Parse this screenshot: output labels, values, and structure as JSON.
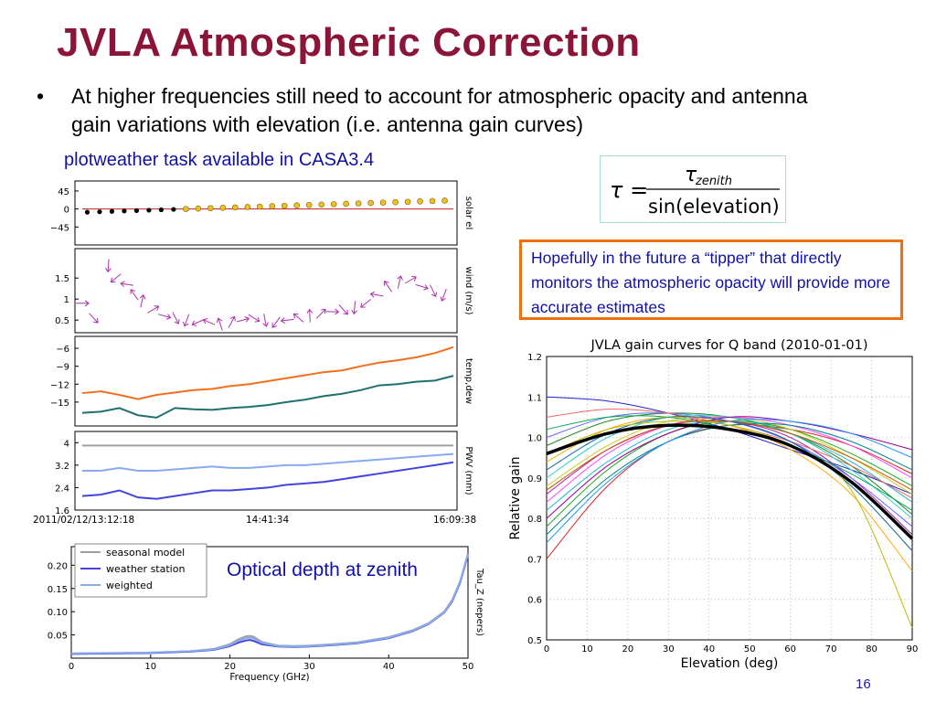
{
  "slide": {
    "title": "JVLA Atmospheric Correction",
    "bullet_symbol": "•",
    "bullet_text": "At higher frequencies still need to account for atmospheric opacity and antenna gain variations with elevation (i.e. antenna gain curves)",
    "note": "plotweather task available in CASA3.4",
    "hope_text": "Hopefully in the future a “tipper” that directly monitors the atmospheric opacity will provide more accurate estimates",
    "optical_label": "Optical depth at zenith",
    "page_number": "16",
    "formula": {
      "lhs": "τ =",
      "numerator": "τ",
      "numerator_sub": "zenith",
      "denominator": "sin(elevation)"
    }
  },
  "chart_data": [
    {
      "type": "scatter",
      "name": "solar-elevation",
      "ylabel": "solar el",
      "yticks": [
        45,
        0,
        -45
      ],
      "ylim": [
        -90,
        70
      ],
      "x": [
        0,
        1,
        2,
        3,
        4,
        5,
        6,
        7,
        8,
        9,
        10,
        11,
        12,
        13,
        14,
        15,
        16,
        17,
        18,
        19,
        20,
        21,
        22,
        23,
        24,
        25,
        26,
        27,
        28,
        29
      ],
      "y": [
        -8,
        -7,
        -6,
        -5,
        -4,
        -3,
        -2,
        -1,
        0,
        1,
        2,
        3,
        4,
        5,
        6,
        7,
        8,
        9,
        10,
        11,
        12,
        13,
        14,
        15,
        16,
        17,
        18,
        19,
        20,
        21
      ],
      "colors": {
        "night": "#000000",
        "day": "#f0c020",
        "line": "#c02020"
      }
    },
    {
      "type": "scatter",
      "name": "wind",
      "ylabel": "wind (m/s)",
      "yticks": [
        1.5,
        1.0,
        0.5
      ],
      "ylim": [
        0.2,
        2.2
      ],
      "x": [
        1,
        4,
        8,
        10,
        13,
        15,
        17,
        20,
        23,
        26,
        29,
        32,
        35,
        38,
        41,
        44,
        47,
        50,
        53,
        56,
        59,
        62,
        65,
        68,
        71,
        74,
        77,
        80,
        83,
        86,
        89,
        92,
        95,
        98
      ],
      "y": [
        0.9,
        0.55,
        1.8,
        1.5,
        1.35,
        1.1,
        0.95,
        0.75,
        0.6,
        0.55,
        0.5,
        0.45,
        0.45,
        0.4,
        0.45,
        0.5,
        0.55,
        0.5,
        0.45,
        0.5,
        0.55,
        0.6,
        0.65,
        0.7,
        0.75,
        0.8,
        0.9,
        1.1,
        1.3,
        1.4,
        1.45,
        1.3,
        1.2,
        1.1
      ],
      "color": "#b030b0"
    },
    {
      "type": "line",
      "name": "temp-dew",
      "ylabel": "temp,dew",
      "yticks": [
        -6,
        -9,
        -12,
        -15
      ],
      "ylim": [
        -19,
        -4
      ],
      "x": [
        0,
        5,
        10,
        15,
        20,
        25,
        30,
        35,
        40,
        45,
        50,
        55,
        60,
        65,
        70,
        75,
        80,
        85,
        90,
        95,
        100
      ],
      "series": [
        {
          "values": [
            -13.5,
            -13.2,
            -13.8,
            -14.5,
            -13.8,
            -13.4,
            -13.0,
            -12.8,
            -12.3,
            -12.0,
            -11.5,
            -11.0,
            -10.5,
            -10.0,
            -9.7,
            -9.0,
            -8.4,
            -8.0,
            -7.5,
            -6.8,
            -5.8
          ],
          "color": "#f07020"
        },
        {
          "values": [
            -16.8,
            -16.6,
            -16.0,
            -17.2,
            -17.6,
            -16.0,
            -16.2,
            -16.3,
            -16.0,
            -15.8,
            -15.5,
            -15.0,
            -14.6,
            -14.0,
            -13.6,
            -13.0,
            -12.2,
            -12.0,
            -11.6,
            -11.4,
            -10.6
          ],
          "color": "#207070"
        }
      ]
    },
    {
      "type": "line",
      "name": "pwv",
      "ylabel": "PWV (mm)",
      "yticks": [
        4.0,
        3.2,
        2.4,
        1.6
      ],
      "ylim": [
        1.6,
        4.4
      ],
      "xticks": [
        "2011/02/12/13:12:18",
        "14:41:34",
        "16:09:38"
      ],
      "x": [
        0,
        5,
        10,
        15,
        20,
        25,
        30,
        35,
        40,
        45,
        50,
        55,
        60,
        65,
        70,
        75,
        80,
        85,
        90,
        95,
        100
      ],
      "series": [
        {
          "values": [
            3.9,
            3.9,
            3.9,
            3.9,
            3.9,
            3.9,
            3.9,
            3.9,
            3.9,
            3.9,
            3.9,
            3.9,
            3.9,
            3.9,
            3.9,
            3.9,
            3.9,
            3.9,
            3.9,
            3.9,
            3.9
          ],
          "color": "#a0a0a0"
        },
        {
          "values": [
            3.0,
            3.0,
            3.1,
            3.0,
            3.0,
            3.05,
            3.1,
            3.15,
            3.1,
            3.1,
            3.15,
            3.2,
            3.2,
            3.25,
            3.3,
            3.35,
            3.4,
            3.45,
            3.5,
            3.55,
            3.6
          ],
          "color": "#88aaee"
        },
        {
          "values": [
            2.1,
            2.15,
            2.3,
            2.05,
            2.0,
            2.1,
            2.2,
            2.3,
            2.3,
            2.35,
            2.4,
            2.5,
            2.55,
            2.6,
            2.7,
            2.8,
            2.9,
            3.0,
            3.1,
            3.2,
            3.3
          ],
          "color": "#4444dd"
        }
      ]
    },
    {
      "type": "line",
      "name": "zenith-opacity",
      "xlabel": "Frequency (GHz)",
      "ylabel": "Tau_Z (nepers)",
      "xlim": [
        0,
        50
      ],
      "ylim": [
        0,
        0.24
      ],
      "xticks": [
        0,
        10,
        20,
        30,
        40,
        50
      ],
      "yticks": [
        0.05,
        0.1,
        0.15,
        0.2
      ],
      "legend": [
        "seasonal model",
        "weather station",
        "weighted"
      ],
      "legend_placement": "top-left",
      "x": [
        0,
        5,
        10,
        15,
        18,
        20,
        21,
        22,
        22.5,
        23,
        24,
        26,
        28,
        30,
        33,
        36,
        40,
        43,
        45,
        47,
        48,
        49,
        50
      ],
      "series": [
        {
          "name": "seasonal model",
          "values": [
            0.01,
            0.011,
            0.012,
            0.015,
            0.02,
            0.03,
            0.04,
            0.047,
            0.048,
            0.046,
            0.035,
            0.027,
            0.026,
            0.027,
            0.03,
            0.034,
            0.045,
            0.06,
            0.075,
            0.1,
            0.125,
            0.165,
            0.225
          ],
          "color": "#a0a0a0"
        },
        {
          "name": "weather station",
          "values": [
            0.009,
            0.01,
            0.011,
            0.014,
            0.018,
            0.026,
            0.033,
            0.038,
            0.039,
            0.037,
            0.03,
            0.025,
            0.024,
            0.025,
            0.028,
            0.032,
            0.043,
            0.058,
            0.073,
            0.098,
            0.122,
            0.162,
            0.222
          ],
          "color": "#4444dd"
        },
        {
          "name": "weighted",
          "values": [
            0.01,
            0.011,
            0.012,
            0.015,
            0.019,
            0.028,
            0.037,
            0.043,
            0.044,
            0.042,
            0.033,
            0.026,
            0.025,
            0.026,
            0.029,
            0.033,
            0.044,
            0.059,
            0.074,
            0.099,
            0.124,
            0.164,
            0.224
          ],
          "color": "#88aaee"
        }
      ]
    },
    {
      "type": "line",
      "name": "gain-curves",
      "title": "JVLA gain curves for Q band (2010-01-01)",
      "xlabel": "Elevation (deg)",
      "ylabel": "Relative gain",
      "xlim": [
        0,
        90
      ],
      "ylim": [
        0.5,
        1.2
      ],
      "xticks": [
        0,
        10,
        20,
        30,
        40,
        50,
        60,
        70,
        80,
        90
      ],
      "yticks": [
        0.5,
        0.6,
        0.7,
        0.8,
        0.9,
        1.0,
        1.1,
        1.2
      ],
      "grid": true,
      "x": [
        0,
        15,
        30,
        45,
        60,
        75,
        90
      ],
      "series": [
        {
          "values": [
            0.96,
            1.01,
            1.03,
            1.02,
            0.98,
            0.89,
            0.75
          ],
          "color": "#000000"
        },
        {
          "values": [
            1.1,
            1.09,
            1.06,
            1.02,
            0.97,
            0.92,
            0.86
          ],
          "color": "#2020cc"
        },
        {
          "values": [
            0.7,
            0.88,
            0.99,
            1.03,
            1.02,
            0.98,
            0.91
          ],
          "color": "#dd2020"
        },
        {
          "values": [
            0.78,
            0.92,
            1.01,
            1.04,
            1.02,
            0.96,
            0.88
          ],
          "color": "#20aa20"
        },
        {
          "values": [
            0.82,
            0.94,
            1.02,
            1.04,
            1.01,
            0.94,
            0.84
          ],
          "color": "#20bbcc"
        },
        {
          "values": [
            0.86,
            0.97,
            1.03,
            1.04,
            1.0,
            0.9,
            0.76
          ],
          "color": "#aa20aa"
        },
        {
          "values": [
            0.88,
            0.98,
            1.04,
            1.05,
            1.02,
            0.95,
            0.86
          ],
          "color": "#cccc20"
        },
        {
          "values": [
            0.98,
            1.04,
            1.06,
            1.05,
            1.01,
            0.93,
            0.81
          ],
          "color": "#228822"
        },
        {
          "values": [
            1.0,
            1.05,
            1.06,
            1.04,
            0.99,
            0.9,
            0.78
          ],
          "color": "#6666ff"
        },
        {
          "values": [
            1.05,
            1.07,
            1.06,
            1.03,
            0.99,
            0.93,
            0.85
          ],
          "color": "#ee6666"
        },
        {
          "values": [
            0.84,
            0.96,
            1.03,
            1.05,
            1.03,
            0.98,
            0.9
          ],
          "color": "#ff44ff"
        },
        {
          "values": [
            0.9,
            1.0,
            1.05,
            1.05,
            1.01,
            0.92,
            0.8
          ],
          "color": "#33cccc"
        },
        {
          "values": [
            0.8,
            0.93,
            1.01,
            1.05,
            1.04,
            1.01,
            0.97
          ],
          "color": "#990099"
        },
        {
          "values": [
            0.92,
            1.01,
            1.05,
            1.04,
            0.99,
            0.88,
            0.72
          ],
          "color": "#1166aa"
        },
        {
          "values": [
            0.94,
            1.02,
            1.05,
            1.03,
            0.97,
            0.86,
            0.67
          ],
          "color": "#ffaa00"
        },
        {
          "values": [
            0.76,
            0.9,
            0.99,
            1.03,
            1.03,
            0.99,
            0.92
          ],
          "color": "#008888"
        },
        {
          "values": [
            0.96,
            1.02,
            1.04,
            1.03,
            0.98,
            0.87,
            0.53
          ],
          "color": "#bbbb00"
        },
        {
          "values": [
            0.74,
            0.89,
            0.99,
            1.04,
            1.04,
            1.01,
            0.95
          ],
          "color": "#2299ff"
        },
        {
          "values": [
            1.02,
            1.05,
            1.05,
            1.02,
            0.98,
            0.91,
            0.82
          ],
          "color": "#00aa55"
        },
        {
          "values": [
            0.87,
            0.97,
            1.03,
            1.04,
            1.01,
            0.95,
            0.87
          ],
          "color": "#cc5500"
        }
      ]
    }
  ]
}
